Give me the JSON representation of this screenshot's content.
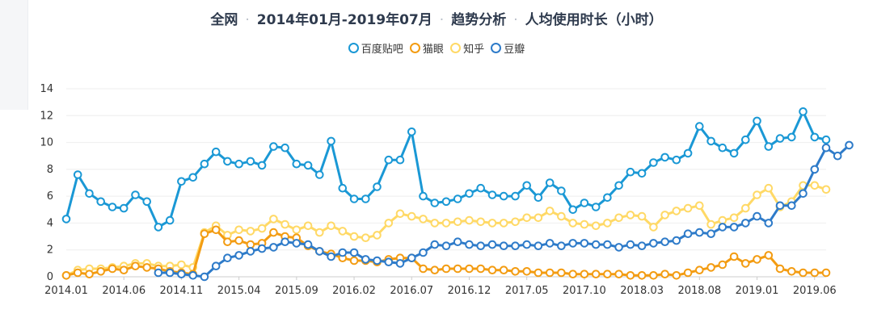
{
  "header": {
    "segments": [
      "全网",
      "2014年01月-2019年07月",
      "趋势分析",
      "人均使用时长（小时）"
    ]
  },
  "colors": {
    "百度贴吧": "#1a98d5",
    "猫眼": "#f39c12",
    "知乎": "#ffd966",
    "豆瓣": "#2e7bc9",
    "grid": "#eeeeee",
    "axis": "#cccccc"
  },
  "chart_data": {
    "type": "line",
    "title": "全网 · 2014年01月-2019年07月 · 趋势分析 · 人均使用时长（小时）",
    "xlabel": "",
    "ylabel": "",
    "ylim": [
      0,
      14
    ],
    "yticks": [
      0,
      2,
      4,
      6,
      8,
      10,
      12,
      14
    ],
    "grid": true,
    "legend": "top-center",
    "xtick_labels": [
      "2014.01",
      "2014.06",
      "2014.11",
      "2015.04",
      "2015.09",
      "2016.02",
      "2016.07",
      "2016.12",
      "2017.05",
      "2017.10",
      "2018.03",
      "2018.08",
      "2019.01",
      "2019.06"
    ],
    "xtick_index": [
      0,
      5,
      10,
      15,
      20,
      25,
      30,
      35,
      40,
      45,
      50,
      55,
      60,
      65
    ],
    "x_count": 67,
    "series": [
      {
        "name": "百度贴吧",
        "start": 0,
        "values": [
          4.3,
          7.6,
          6.2,
          5.6,
          5.2,
          5.1,
          6.1,
          5.6,
          3.7,
          4.2,
          7.1,
          7.4,
          8.4,
          9.3,
          8.6,
          8.4,
          8.6,
          8.3,
          9.7,
          9.6,
          8.4,
          8.3,
          7.6,
          10.1,
          6.6,
          5.8,
          5.8,
          6.7,
          8.7,
          8.7,
          10.8,
          6.0,
          5.5,
          5.6,
          5.8,
          6.2,
          6.6,
          6.1,
          6.0,
          6.0,
          6.8,
          5.9,
          7.0,
          6.4,
          5.0,
          5.5,
          5.2,
          5.9,
          6.8,
          7.8,
          7.7,
          8.5,
          8.9,
          8.7,
          9.2,
          11.2,
          10.1,
          9.6,
          9.2,
          10.2,
          11.6,
          9.7,
          10.3,
          10.4,
          12.3,
          10.4,
          10.2
        ]
      },
      {
        "name": "猫眼",
        "start": 0,
        "values": [
          0.1,
          0.3,
          0.2,
          0.4,
          0.6,
          0.5,
          0.8,
          0.7,
          0.6,
          0.4,
          0.3,
          0.2,
          3.2,
          3.5,
          2.6,
          2.7,
          2.4,
          2.5,
          3.3,
          3.0,
          2.9,
          2.3,
          1.9,
          1.7,
          1.4,
          1.2,
          1.2,
          1.1,
          1.3,
          1.4,
          1.4,
          0.6,
          0.5,
          0.6,
          0.6,
          0.6,
          0.6,
          0.5,
          0.5,
          0.4,
          0.4,
          0.3,
          0.3,
          0.3,
          0.2,
          0.2,
          0.2,
          0.2,
          0.2,
          0.1,
          0.1,
          0.1,
          0.2,
          0.1,
          0.3,
          0.5,
          0.7,
          0.9,
          1.5,
          1.0,
          1.3,
          1.6,
          0.6,
          0.4,
          0.3,
          0.3,
          0.3
        ]
      },
      {
        "name": "知乎",
        "start": 0,
        "values": [
          0.1,
          0.5,
          0.6,
          0.6,
          0.7,
          0.8,
          1.0,
          1.0,
          0.8,
          0.8,
          0.9,
          0.7,
          3.3,
          3.8,
          3.1,
          3.5,
          3.4,
          3.6,
          4.3,
          3.9,
          3.5,
          3.8,
          3.3,
          3.8,
          3.4,
          3.0,
          2.9,
          3.1,
          4.0,
          4.7,
          4.5,
          4.3,
          4.0,
          4.0,
          4.1,
          4.2,
          4.1,
          4.0,
          4.0,
          4.1,
          4.4,
          4.4,
          4.9,
          4.5,
          4.0,
          3.9,
          3.8,
          4.0,
          4.4,
          4.6,
          4.5,
          3.7,
          4.6,
          4.9,
          5.1,
          5.3,
          3.9,
          4.2,
          4.4,
          5.1,
          6.1,
          6.6,
          5.2,
          5.6,
          6.8,
          6.8,
          6.5
        ]
      },
      {
        "name": "豆瓣",
        "start": 8,
        "values": [
          0.3,
          0.3,
          0.2,
          0.1,
          0.0,
          0.8,
          1.4,
          1.6,
          1.9,
          2.1,
          2.2,
          2.6,
          2.5,
          2.4,
          1.9,
          1.5,
          1.8,
          1.8,
          1.3,
          1.2,
          1.1,
          1.0,
          1.4,
          1.8,
          2.4,
          2.3,
          2.6,
          2.4,
          2.3,
          2.4,
          2.3,
          2.3,
          2.4,
          2.3,
          2.5,
          2.3,
          2.5,
          2.5,
          2.4,
          2.4,
          2.2,
          2.4,
          2.3,
          2.5,
          2.6,
          2.7,
          3.2,
          3.3,
          3.2,
          3.7,
          3.7,
          4.0,
          4.5,
          4.0,
          5.3,
          5.3,
          6.2,
          8.0,
          9.6,
          9.0,
          9.8
        ]
      }
    ]
  }
}
